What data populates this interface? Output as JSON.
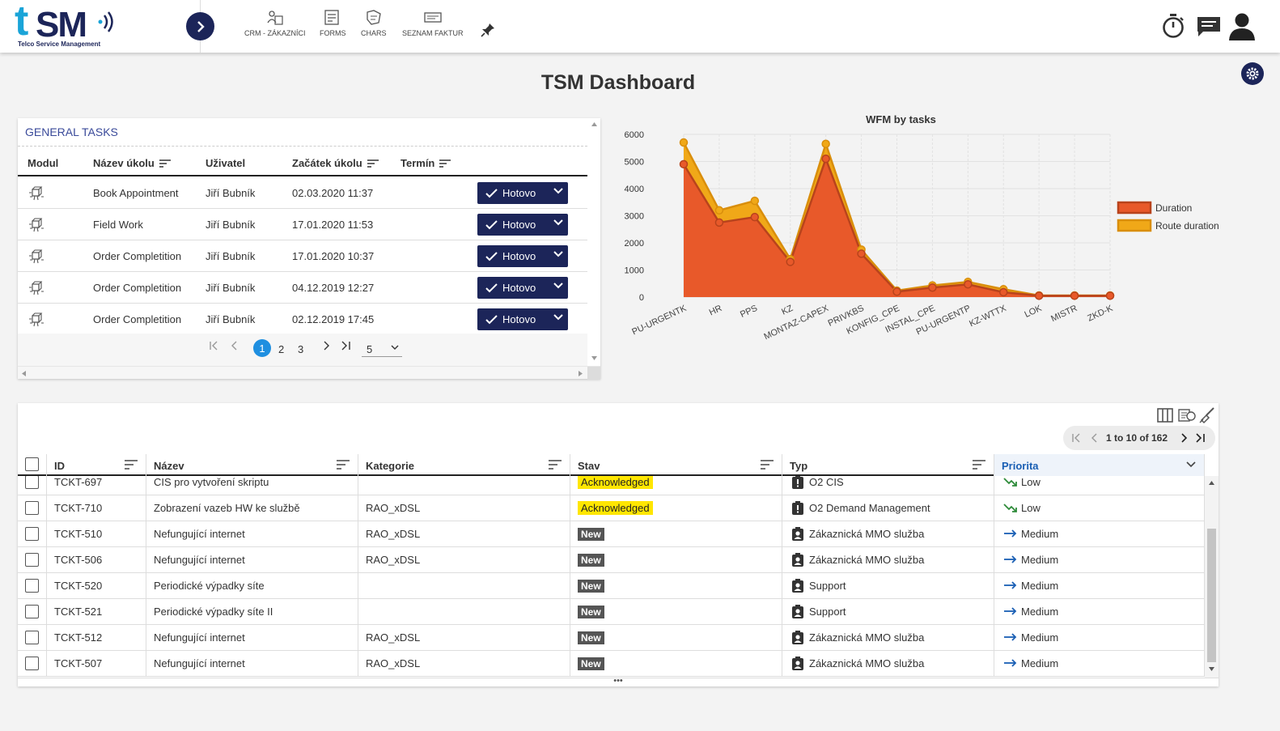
{
  "app": {
    "logo_text": "tSM",
    "logo_tagline": "Telco Service Management"
  },
  "nav": [
    {
      "label": "CRM - ZÁKAZNÍCI",
      "icon": "crm-customers-icon"
    },
    {
      "label": "FORMS",
      "icon": "forms-icon"
    },
    {
      "label": "CHARS",
      "icon": "chars-icon"
    },
    {
      "label": "SEZNAM FAKTUR",
      "icon": "invoice-list-icon"
    }
  ],
  "page_title": "TSM Dashboard",
  "general_tasks": {
    "title": "GENERAL TASKS",
    "columns": [
      "Modul",
      "Název úkolu",
      "Uživatel",
      "Začátek úkolu",
      "Termín"
    ],
    "action_label": "Hotovo",
    "rows": [
      {
        "name": "Book Appointment",
        "user": "Jiří Bubník",
        "start": "02.03.2020 11:37",
        "due": ""
      },
      {
        "name": "Field Work",
        "user": "Jiří Bubník",
        "start": "17.01.2020 11:53",
        "due": ""
      },
      {
        "name": "Order Completition",
        "user": "Jiří Bubník",
        "start": "17.01.2020 10:37",
        "due": ""
      },
      {
        "name": "Order Completition",
        "user": "Jiří Bubník",
        "start": "04.12.2019 12:27",
        "due": ""
      },
      {
        "name": "Order Completition",
        "user": "Jiří Bubník",
        "start": "02.12.2019 17:45",
        "due": ""
      }
    ],
    "pager": {
      "pages": [
        "1",
        "2",
        "3"
      ],
      "current": "1",
      "page_size": "5"
    }
  },
  "chart_data": {
    "type": "area",
    "title": "WFM by tasks",
    "categories": [
      "PU-URGENTK",
      "HR",
      "PPS",
      "KZ",
      "MONTAZ-CAPEX",
      "PRIVKBS",
      "KONFIG_CPE",
      "INSTAL_CPE",
      "PU-URGENTP",
      "KZ-WTTX",
      "LOK",
      "MISTR",
      "ZKD-K"
    ],
    "series": [
      {
        "name": "Duration",
        "color": "#e8592a",
        "values": [
          4900,
          2750,
          2950,
          1300,
          5100,
          1600,
          200,
          350,
          470,
          180,
          50,
          50,
          50
        ]
      },
      {
        "name": "Route duration",
        "color": "#f0a818",
        "values": [
          5700,
          3200,
          3550,
          1400,
          5650,
          1750,
          240,
          430,
          560,
          290,
          60,
          60,
          60
        ]
      }
    ],
    "ylim": [
      0,
      6000
    ],
    "yticks": [
      0,
      1000,
      2000,
      3000,
      4000,
      5000,
      6000
    ],
    "legend": "right",
    "grid": true
  },
  "tickets": {
    "pager_text": "1 to 10 of 162",
    "columns": [
      "ID",
      "Název",
      "Kategorie",
      "Stav",
      "Typ",
      "Priorita"
    ],
    "rows": [
      {
        "id": "TCKT-697",
        "name": "CIS pro vytvoření skriptu",
        "category": "",
        "status": "Acknowledged",
        "type": "O2 CIS",
        "type_icon": "exclamation-badge-icon",
        "priority": "Low"
      },
      {
        "id": "TCKT-710",
        "name": "Zobrazení vazeb HW ke službě",
        "category": "RAO_xDSL",
        "status": "Acknowledged",
        "type": "O2 Demand Management",
        "type_icon": "exclamation-badge-icon",
        "priority": "Low"
      },
      {
        "id": "TCKT-510",
        "name": "Nefungující internet",
        "category": "RAO_xDSL",
        "status": "New",
        "type": "Zákaznická MMO služba",
        "type_icon": "person-badge-icon",
        "priority": "Medium"
      },
      {
        "id": "TCKT-506",
        "name": "Nefungující internet",
        "category": "RAO_xDSL",
        "status": "New",
        "type": "Zákaznická MMO služba",
        "type_icon": "person-badge-icon",
        "priority": "Medium"
      },
      {
        "id": "TCKT-520",
        "name": "Periodické výpadky síte",
        "category": "",
        "status": "New",
        "type": "Support",
        "type_icon": "person-badge-icon",
        "priority": "Medium"
      },
      {
        "id": "TCKT-521",
        "name": "Periodické výpadky síte II",
        "category": "",
        "status": "New",
        "type": "Support",
        "type_icon": "person-badge-icon",
        "priority": "Medium"
      },
      {
        "id": "TCKT-512",
        "name": "Nefungující internet",
        "category": "RAO_xDSL",
        "status": "New",
        "type": "Zákaznická MMO služba",
        "type_icon": "person-badge-icon",
        "priority": "Medium"
      },
      {
        "id": "TCKT-507",
        "name": "Nefungující internet",
        "category": "RAO_xDSL",
        "status": "New",
        "type": "Zákaznická MMO služba",
        "type_icon": "person-badge-icon",
        "priority": "Medium"
      }
    ],
    "footer_text": "•••"
  }
}
